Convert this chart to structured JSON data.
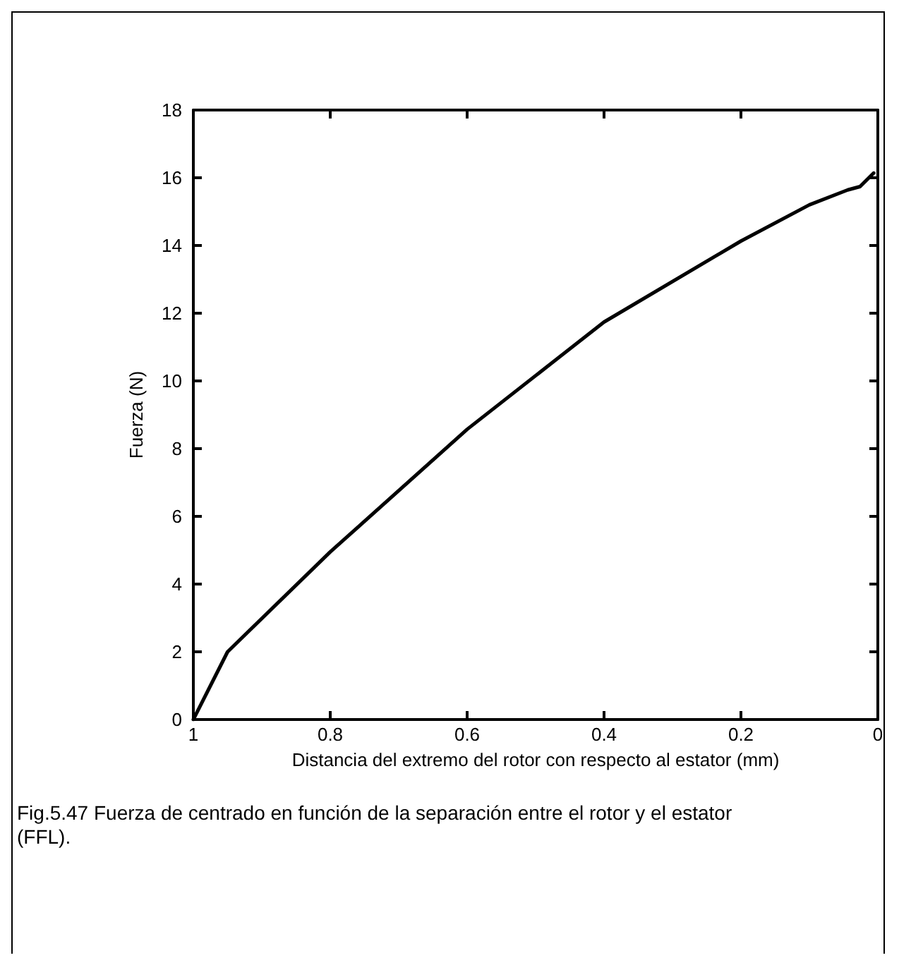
{
  "chart_data": {
    "type": "line",
    "xlabel": "Distancia del extremo del rotor con respecto al estator (mm)",
    "ylabel": "Fuerza (N)",
    "annotations": [
      "Fig.5.47                Fuerza de centrado en función de la separación entre el rotor y el estator (FFL)."
    ],
    "x": [
      1,
      0.95,
      0.8,
      0.6,
      0.4,
      0.2,
      0.1,
      0.044,
      0.026,
      0.006
    ],
    "series": [
      {
        "color": "#000000",
        "values": [
          0,
          2,
          4.95,
          8.57,
          11.74,
          14.13,
          15.2,
          15.64,
          15.74,
          16.14
        ]
      }
    ],
    "xlim": [
      1,
      0
    ],
    "xticks": [
      1,
      0.8,
      0.6,
      0.4,
      0.2,
      0
    ],
    "ylim": [
      0,
      18
    ],
    "yticks": [
      0,
      2,
      4,
      6,
      8,
      10,
      12,
      14,
      16,
      18
    ],
    "grid": false,
    "marker": "none",
    "line_style": "solid"
  }
}
